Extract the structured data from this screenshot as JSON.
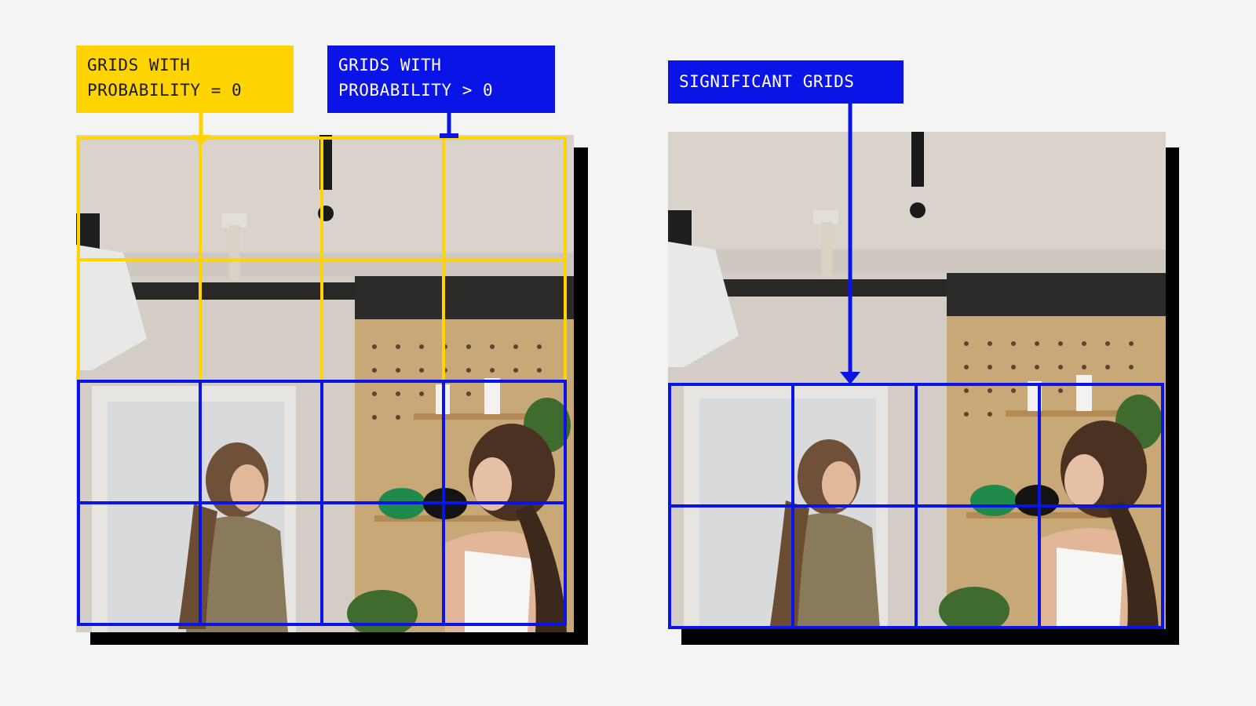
{
  "colors": {
    "yellow": "#ffd400",
    "blue": "#0a14e6",
    "shadow": "#000000",
    "background": "#f4f4f4"
  },
  "labels": {
    "zero_probability": "GRIDS WITH\nPROBABILITY = 0",
    "positive_probability": "GRIDS WITH\nPROBABILITY > 0",
    "significant": "SIGNIFICANT GRIDS"
  },
  "left_panel": {
    "grid_columns": 4,
    "grid_rows": 4,
    "zero_probability_rows": 2,
    "positive_probability_rows": 2
  },
  "right_panel": {
    "grid_columns": 4,
    "significant_rows": 2
  }
}
